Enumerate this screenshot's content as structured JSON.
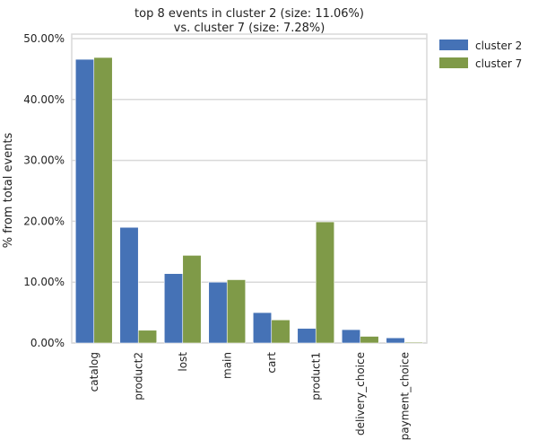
{
  "chart_data": {
    "type": "bar",
    "title_line1": "top 8 events in cluster 2 (size: 11.06%)",
    "title_line2": "vs. cluster 7 (size: 7.28%)",
    "xlabel": "",
    "ylabel": "% from total events",
    "ylim": [
      0,
      50
    ],
    "yticks": [
      0,
      10,
      20,
      30,
      40,
      50
    ],
    "ytick_labels": [
      "0.00%",
      "10.00%",
      "20.00%",
      "30.00%",
      "40.00%",
      "50.00%"
    ],
    "categories": [
      "catalog",
      "product2",
      "lost",
      "main",
      "cart",
      "product1",
      "delivery_choice",
      "payment_choice"
    ],
    "series": [
      {
        "name": "cluster 2",
        "color": "#4572b6",
        "values": [
          46.6,
          19.0,
          11.4,
          10.0,
          5.0,
          2.4,
          2.2,
          0.85
        ]
      },
      {
        "name": "cluster 7",
        "color": "#7f9a48",
        "values": [
          46.9,
          2.1,
          14.4,
          10.4,
          3.8,
          19.9,
          1.1,
          0.15
        ]
      }
    ],
    "grid": true,
    "legend_position": "outside-top-right"
  }
}
